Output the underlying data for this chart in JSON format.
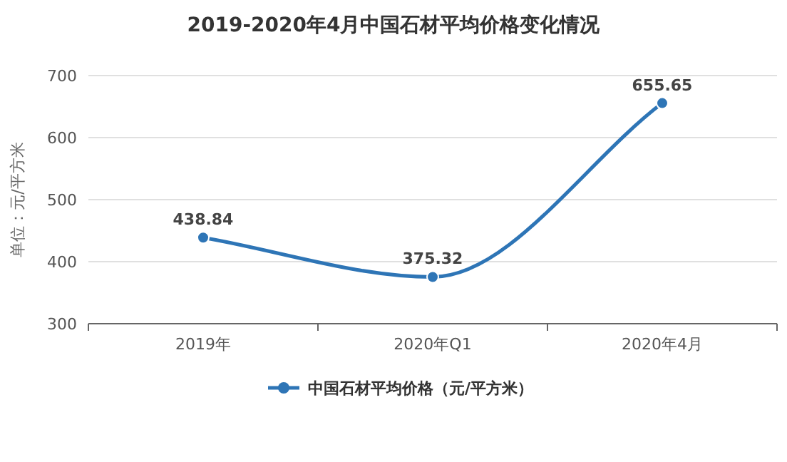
{
  "chart_data": {
    "type": "line",
    "title": "2019-2020年4月中国石材平均价格变化情况",
    "ylabel": "单位：元/平方米",
    "categories": [
      "2019年",
      "2020年Q1",
      "2020年4月"
    ],
    "series": [
      {
        "name": "中国石材平均价格（元/平方米）",
        "color": "#2e75b6",
        "values": [
          438.84,
          375.32,
          655.65
        ]
      }
    ],
    "ylim": [
      300,
      700
    ],
    "yticks": [
      300,
      400,
      500,
      600,
      700
    ],
    "grid": "y",
    "legend": "bottom",
    "marker": "circle",
    "line_style": "solid",
    "data_labels": true
  }
}
